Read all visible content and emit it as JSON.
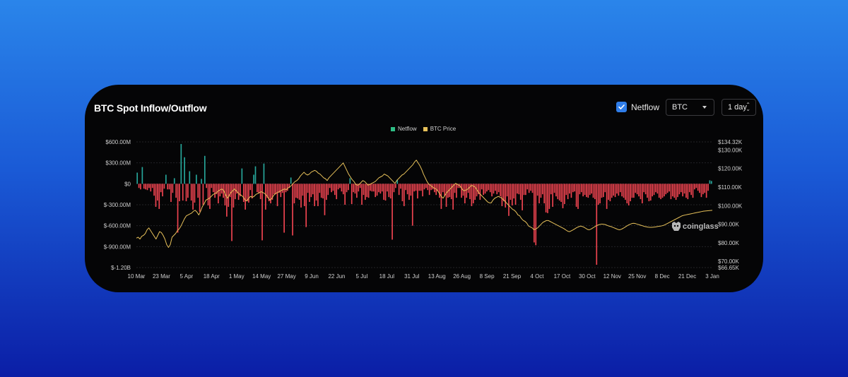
{
  "card": {
    "title": "BTC Spot Inflow/Outflow"
  },
  "controls": {
    "netflow_label": "Netflow",
    "coin_select": "BTC",
    "interval_select": "1 day"
  },
  "watermark": "coinglass",
  "colors": {
    "inflow": "#26a69a",
    "outflow": "#ef4450",
    "price": "#e7c15a",
    "checkbox": "#2f7de9"
  },
  "chart_data": {
    "type": "bar",
    "legend": [
      {
        "name": "Netflow",
        "color": "#2ebd85"
      },
      {
        "name": "BTC Price",
        "color": "#e7c15a"
      }
    ],
    "legend_position": "top-center",
    "grid": true,
    "left_axis": {
      "label": "",
      "ticks": [
        "$600.00M",
        "$300.00M",
        "$0",
        "$-300.00M",
        "$-600.00M",
        "$-900.00M",
        "$-1.20B"
      ],
      "range": [
        -1200,
        600
      ],
      "unit": "M"
    },
    "right_axis": {
      "label": "",
      "ticks": [
        "$134.32K",
        "$130.00K",
        "$120.00K",
        "$110.00K",
        "$100.00K",
        "$90.00K",
        "$80.00K",
        "$70.00K",
        "$66.65K"
      ],
      "range": [
        66.65,
        134.32
      ],
      "unit": "K"
    },
    "x_ticks": [
      "10 Mar",
      "23 Mar",
      "5 Apr",
      "18 Apr",
      "1 May",
      "14 May",
      "27 May",
      "9 Jun",
      "22 Jun",
      "5 Jul",
      "18 Jul",
      "31 Jul",
      "13 Aug",
      "26 Aug",
      "8 Sep",
      "21 Sep",
      "4 Oct",
      "17 Oct",
      "30 Oct",
      "12 Nov",
      "25 Nov",
      "8 Dec",
      "21 Dec",
      "3 Jan"
    ],
    "series": [
      {
        "name": "Netflow",
        "unit": "M USD",
        "values": [
          160,
          -60,
          -80,
          240,
          -70,
          -80,
          -90,
          -60,
          -110,
          -60,
          -170,
          -330,
          -240,
          -360,
          -120,
          -180,
          -70,
          130,
          -80,
          -80,
          -260,
          -130,
          80,
          -200,
          -700,
          -250,
          570,
          -240,
          380,
          -250,
          -200,
          180,
          -240,
          -370,
          -270,
          130,
          -200,
          -400,
          70,
          -300,
          400,
          -60,
          -310,
          -360,
          -60,
          -120,
          -200,
          -150,
          -280,
          -180,
          -140,
          -200,
          -310,
          -470,
          -330,
          -190,
          -820,
          -340,
          -220,
          -140,
          -230,
          -180,
          220,
          -260,
          -370,
          -250,
          -270,
          -90,
          -210,
          130,
          250,
          -120,
          -140,
          -220,
          -810,
          290,
          -370,
          -200,
          -250,
          -280,
          -230,
          -150,
          -150,
          -320,
          -130,
          -190,
          -130,
          -700,
          -120,
          -100,
          -60,
          90,
          -740,
          -280,
          -200,
          -210,
          -230,
          -340,
          -170,
          -320,
          -620,
          -130,
          -260,
          -190,
          -150,
          -320,
          -240,
          -320,
          -130,
          -200,
          -210,
          -450,
          -230,
          -160,
          -60,
          -120,
          -100,
          -160,
          -220,
          -80,
          -60,
          -110,
          -150,
          -300,
          -120,
          -90,
          80,
          -290,
          -120,
          -140,
          -200,
          -110,
          -60,
          -300,
          -160,
          -230,
          -190,
          -200,
          -100,
          -110,
          -110,
          -190,
          -170,
          -120,
          -140,
          -110,
          -230,
          -240,
          -110,
          -190,
          -210,
          -800,
          -120,
          -60,
          60,
          -160,
          -70,
          -250,
          -320,
          -90,
          -150,
          -230,
          -170,
          -600,
          -110,
          -100,
          -210,
          -100,
          -100,
          -180,
          -80,
          -60,
          -90,
          -160,
          -90,
          -80,
          -120,
          -160,
          -110,
          -200,
          -360,
          -120,
          -170,
          -330,
          -200,
          -190,
          -220,
          -370,
          -130,
          -200,
          -60,
          -60,
          -200,
          -170,
          -280,
          -200,
          -130,
          -220,
          -320,
          -280,
          -230,
          -180,
          -150,
          -230,
          -80,
          -160,
          -140,
          -110,
          -90,
          -120,
          -180,
          -140,
          -100,
          -150,
          -120,
          -180,
          -320,
          -250,
          -340,
          -180,
          -460,
          -230,
          -310,
          -210,
          -300,
          -140,
          -150,
          -230,
          -380,
          -160,
          -160,
          -80,
          -130,
          -100,
          -130,
          -840,
          -880,
          -170,
          -280,
          -200,
          -150,
          -280,
          -410,
          -420,
          -360,
          -150,
          -330,
          -130,
          -180,
          -220,
          -240,
          -260,
          -350,
          -290,
          -160,
          -220,
          -140,
          -200,
          -120,
          -110,
          -330,
          -360,
          -150,
          -120,
          -180,
          -160,
          -190,
          -200,
          -160,
          -140,
          -200,
          -220,
          -1160,
          -300,
          -280,
          -200,
          -190,
          -120,
          -360,
          -230,
          -250,
          -200,
          -170,
          -190,
          -140,
          -170,
          -120,
          -180,
          -200,
          -230,
          -280,
          -310,
          -250,
          -200,
          -200,
          -130,
          -150,
          -180,
          -220,
          -280,
          -120,
          -150,
          -200,
          -250,
          -240,
          -180,
          -160,
          -120,
          -140,
          -200,
          -220,
          -200,
          -180,
          -150,
          -130,
          -110,
          -220,
          -180,
          -200,
          -230,
          -190,
          -150,
          -120,
          -180,
          -140,
          -200,
          -220,
          -120,
          -160,
          -200,
          -80,
          -60,
          -100,
          -130,
          -190,
          -150,
          -130,
          -200,
          -100,
          50,
          40
        ]
      },
      {
        "name": "BTC Price",
        "unit": "K USD",
        "values": [
          82.5,
          83,
          82,
          83.5,
          84,
          85,
          87,
          88,
          86.5,
          85,
          83.5,
          82,
          84,
          86,
          85.5,
          84,
          82,
          79,
          77.5,
          79,
          83,
          84,
          85,
          86.5,
          87.5,
          89,
          91,
          93,
          94.5,
          95,
          95.5,
          96,
          97,
          97.5,
          96.5,
          95,
          97,
          99.5,
          101,
          103,
          103.5,
          104,
          105,
          106,
          106.5,
          107,
          108,
          108.5,
          109,
          108,
          106,
          104,
          105.5,
          107,
          108,
          109,
          108,
          107,
          106,
          105.5,
          104.5,
          103,
          102.5,
          104,
          105,
          104.5,
          105,
          106,
          106.5,
          107,
          107.5,
          107,
          106.5,
          105.5,
          104,
          103,
          104,
          105.5,
          106.5,
          107,
          107.5,
          108,
          108.5,
          109,
          108.5,
          109.5,
          110,
          111,
          112,
          113,
          113.5,
          114.5,
          116,
          117,
          118,
          117,
          116.5,
          117,
          118,
          118.5,
          119,
          118.5,
          117.5,
          117,
          116,
          115,
          114.5,
          113.5,
          115,
          116,
          117,
          118,
          119,
          120,
          121,
          122,
          123,
          121,
          119,
          117,
          115.5,
          114,
          113,
          111.5,
          111,
          111.5,
          112.5,
          113.5,
          113,
          112,
          111,
          111.5,
          112,
          112.5,
          113,
          114,
          115,
          115.5,
          116,
          117,
          116.5,
          116,
          115,
          114,
          113,
          112,
          113.5,
          114.5,
          115.5,
          116.5,
          117,
          118,
          119,
          120,
          121,
          122,
          123.5,
          124.5,
          123,
          121.5,
          119.5,
          117,
          115,
          113,
          111.5,
          111,
          110,
          109.5,
          109,
          108,
          106.5,
          105,
          104,
          105.5,
          107,
          108,
          109,
          110,
          111,
          112,
          111.5,
          111,
          110,
          108.5,
          108,
          108.5,
          109,
          110,
          111,
          110.5,
          110,
          108.5,
          107,
          106,
          105,
          104,
          103,
          102,
          101.5,
          101.5,
          103,
          104,
          104.5,
          105,
          104.5,
          104,
          103,
          102,
          101,
          100,
          99,
          98,
          97.5,
          96.5,
          95,
          94.5,
          93,
          92,
          91.5,
          90.5,
          89,
          88.5,
          88,
          87,
          87.5,
          88,
          89,
          90,
          91,
          91.5,
          92,
          92,
          91.5,
          91,
          90.5,
          90,
          89.5,
          89,
          88.5,
          88,
          87.5,
          86.8,
          86.2,
          86,
          86.5,
          87,
          87.6,
          88.2,
          88.6,
          89,
          88.8,
          88.4,
          87.8,
          87.2,
          87,
          87.4,
          88,
          88.6,
          89.2,
          89.6,
          89.9,
          90.1,
          90,
          89.8,
          89.4,
          89,
          88.8,
          88.4,
          88,
          87.6,
          87.2,
          87,
          87.3,
          87.8,
          88.4,
          89,
          89.6,
          90,
          90.4,
          90.5,
          90.3,
          90,
          89.7,
          89.4,
          89.1,
          88.8,
          88.6,
          88.4,
          88.3,
          88.3,
          88.4,
          88.5,
          88.7,
          88.9,
          89,
          89.2,
          89.5,
          90,
          90.5,
          91,
          91.5,
          92,
          92.5,
          93,
          93.5,
          94,
          94.5,
          94.8,
          95,
          95.2,
          95.4,
          95.6,
          95.8,
          96,
          96.2,
          96.4,
          96.6,
          96.8,
          97,
          97.1,
          97.2,
          97.3,
          97.4,
          97.5
        ]
      }
    ]
  }
}
